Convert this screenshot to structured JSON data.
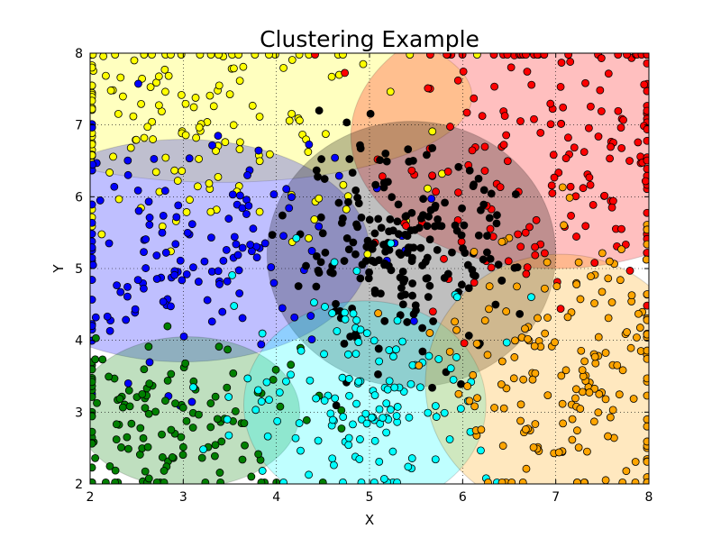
{
  "chart_data": {
    "type": "scatter",
    "title": "Clustering Example",
    "xlabel": "X",
    "ylabel": "Y",
    "xlim": [
      2,
      8
    ],
    "ylim": [
      2,
      8
    ],
    "xticks": [
      "2",
      "3",
      "4",
      "5",
      "6",
      "7",
      "8"
    ],
    "yticks": [
      "2",
      "3",
      "4",
      "5",
      "6",
      "7",
      "8"
    ],
    "grid": true,
    "grid_style": "dotted",
    "legend": "none",
    "clusters": [
      {
        "color": "#ffff00",
        "center": [
          3.1,
          7.0
        ],
        "spread": [
          1.15,
          0.85
        ],
        "count": 170,
        "ellipse": {
          "cx": 3.4,
          "cy": 7.4,
          "rx": 2.7,
          "ry": 1.2
        }
      },
      {
        "color": "#ff0000",
        "center": [
          7.0,
          6.7
        ],
        "spread": [
          0.95,
          1.15
        ],
        "count": 200,
        "ellipse": {
          "cx": 7.0,
          "cy": 6.85,
          "rx": 2.2,
          "ry": 1.85
        }
      },
      {
        "color": "#0000ff",
        "center": [
          2.9,
          5.2
        ],
        "spread": [
          0.95,
          0.8
        ],
        "count": 150,
        "ellipse": {
          "cx": 3.0,
          "cy": 5.25,
          "rx": 2.0,
          "ry": 1.55
        }
      },
      {
        "color": "#000000",
        "center": [
          5.35,
          5.2
        ],
        "spread": [
          0.6,
          0.7
        ],
        "count": 210,
        "ellipse": {
          "cx": 5.45,
          "cy": 5.2,
          "rx": 1.55,
          "ry": 1.85
        }
      },
      {
        "color": "#008000",
        "center": [
          2.9,
          2.85
        ],
        "spread": [
          0.85,
          0.6
        ],
        "count": 140,
        "ellipse": {
          "cx": 3.05,
          "cy": 3.0,
          "rx": 1.2,
          "ry": 1.05
        }
      },
      {
        "color": "#00ffff",
        "center": [
          5.0,
          3.3
        ],
        "spread": [
          0.7,
          0.75
        ],
        "count": 145,
        "ellipse": {
          "cx": 4.95,
          "cy": 3.1,
          "rx": 1.3,
          "ry": 1.45
        }
      },
      {
        "color": "#ffa500",
        "center": [
          7.2,
          3.5
        ],
        "spread": [
          0.7,
          1.0
        ],
        "count": 190,
        "ellipse": {
          "cx": 7.05,
          "cy": 3.4,
          "rx": 1.45,
          "ry": 1.8
        }
      }
    ]
  }
}
